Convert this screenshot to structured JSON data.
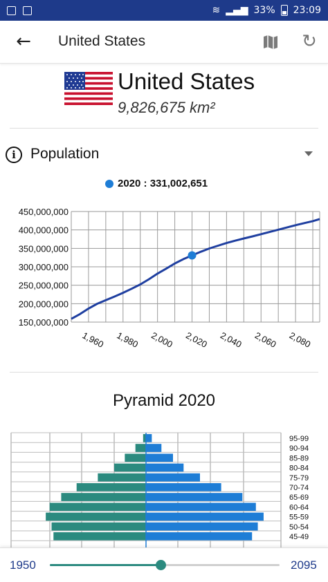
{
  "status_bar": {
    "battery": "33%",
    "time": "23:09"
  },
  "app_bar": {
    "title": "United States",
    "back_icon": "arrow-left-icon",
    "map_icon": "map-icon",
    "refresh_icon": "refresh-icon"
  },
  "country": {
    "name": "United States",
    "area": "9,826,675 km²",
    "flag_icon": "us-flag-icon"
  },
  "population": {
    "section_title": "Population",
    "legend": "2020 : 331,002,651",
    "accent_color": "#1e7dd6"
  },
  "pyramid": {
    "title": "Pyramid 2020"
  },
  "slider": {
    "min_label": "1950",
    "max_label": "2095",
    "value": 2020,
    "min": 1950,
    "max": 2095
  },
  "chart_data": [
    {
      "type": "line",
      "title": "",
      "xlabel": "",
      "ylabel": "",
      "x_ticks": [
        "1,960",
        "1,980",
        "2,000",
        "2,020",
        "2,040",
        "2,060",
        "2,080"
      ],
      "y_ticks": [
        "150,000,000",
        "200,000,000",
        "250,000,000",
        "300,000,000",
        "350,000,000",
        "400,000,000",
        "450,000,000"
      ],
      "xlim": [
        1950,
        2094
      ],
      "ylim": [
        150000000,
        450000000
      ],
      "series": [
        {
          "x": [
            1950,
            1955,
            1960,
            1965,
            1970,
            1975,
            1980,
            1985,
            1990,
            1995,
            2000,
            2005,
            2010,
            2015,
            2020,
            2025,
            2030,
            2035,
            2040,
            2045,
            2050,
            2055,
            2060,
            2065,
            2070,
            2075,
            2080,
            2085,
            2090,
            2095
          ],
          "y": [
            158800000,
            171700000,
            186700000,
            199700000,
            209500000,
            219100000,
            229500000,
            240500000,
            252100000,
            266300000,
            281700000,
            294900000,
            309000000,
            320900000,
            331000000,
            340700000,
            349600000,
            357200000,
            364500000,
            370900000,
            376800000,
            382500000,
            388500000,
            394500000,
            400600000,
            406700000,
            412800000,
            418500000,
            424000000,
            429600000
          ],
          "color": "#1f3fa0"
        }
      ],
      "highlight": {
        "x": 2020,
        "y": 331002651,
        "color": "#1e7dd6"
      },
      "grid": true
    },
    {
      "type": "bar",
      "title": "Pyramid 2020",
      "categories": [
        "95-99",
        "90-94",
        "85-89",
        "80-84",
        "75-79",
        "70-74",
        "65-69",
        "60-64",
        "55-59",
        "50-54",
        "45-49"
      ],
      "series": [
        {
          "name": "",
          "color": "#2b8a7f",
          "values": [
            0.15,
            0.55,
            1.1,
            1.65,
            2.5,
            3.6,
            4.4,
            5.0,
            5.2,
            4.9,
            4.8
          ]
        },
        {
          "name": "",
          "color": "#1e7dd6",
          "values": [
            0.3,
            0.8,
            1.4,
            1.95,
            2.8,
            3.9,
            5.0,
            5.7,
            6.1,
            5.8,
            5.5
          ]
        }
      ],
      "xlim": [
        -7,
        7
      ],
      "grid": true
    }
  ]
}
